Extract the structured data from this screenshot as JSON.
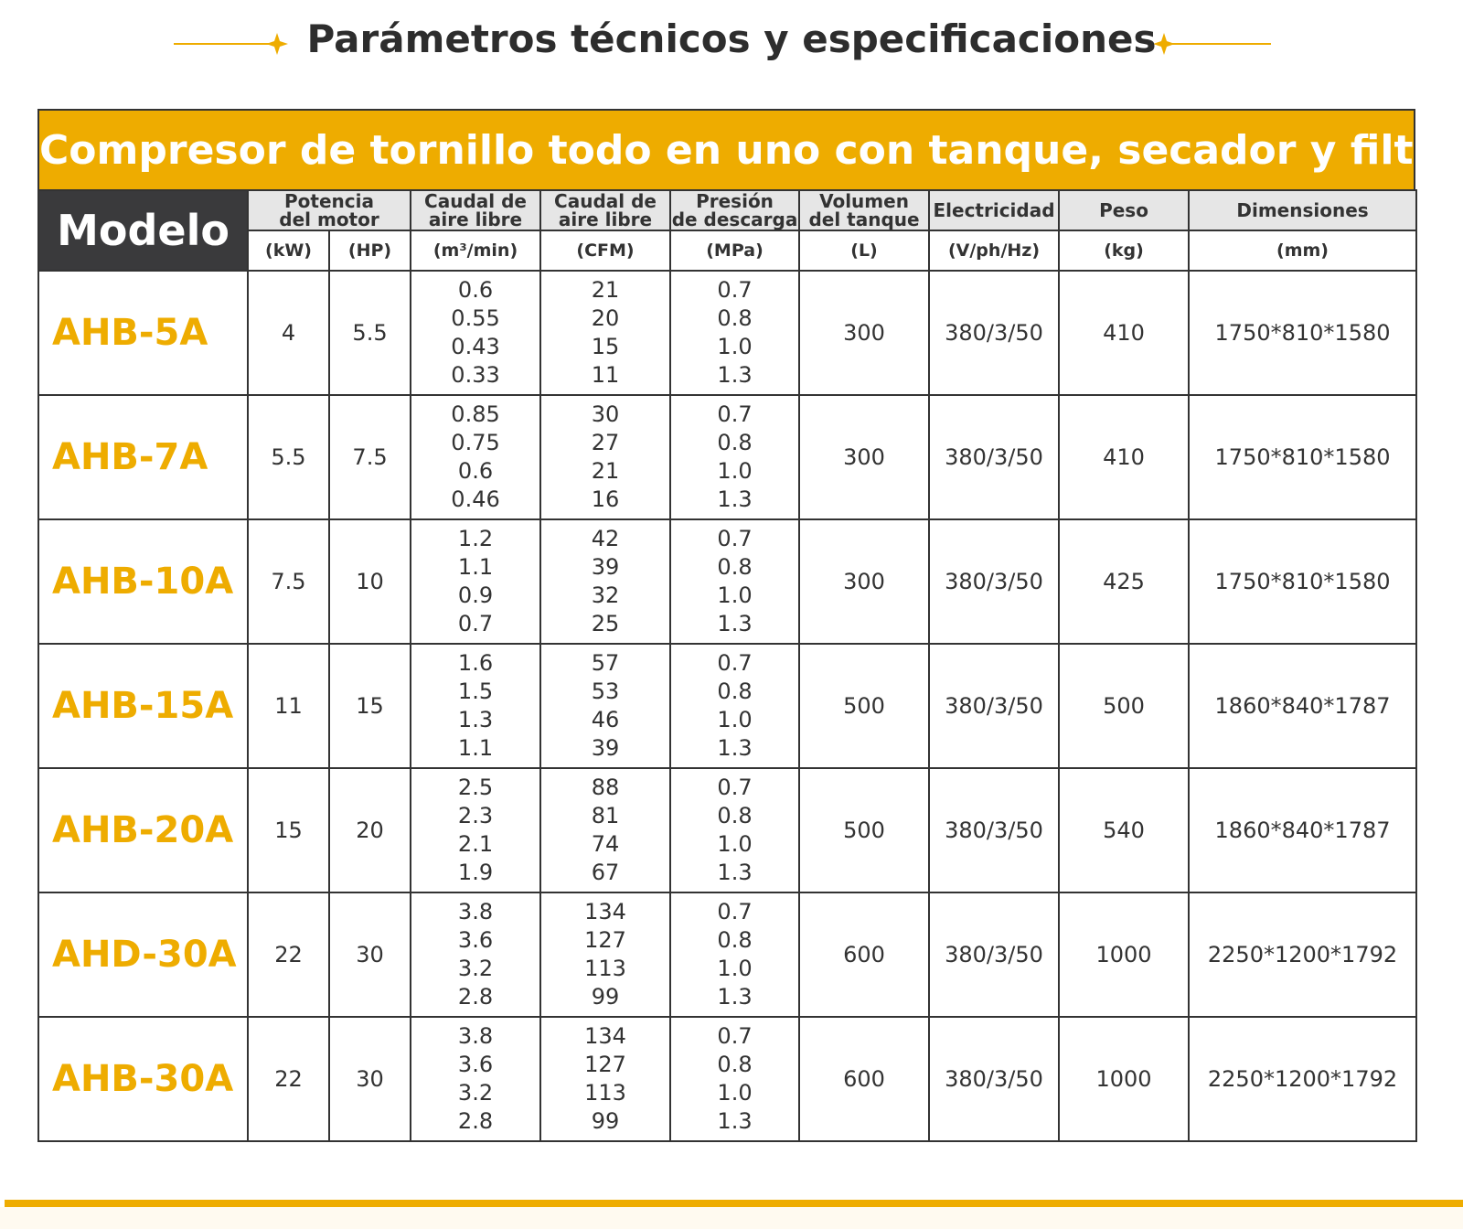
{
  "header": {
    "title": "Parámetros técnicos y especificaciones"
  },
  "table": {
    "title": "Compresor de tornillo todo en uno con tanque, secador y filtros",
    "model_header": "Modelo",
    "columns": [
      {
        "lines": [
          "Potencia",
          "del motor"
        ],
        "units": [
          "(kW)",
          "(HP)"
        ]
      },
      {
        "lines": [
          "Caudal de",
          "aire libre"
        ],
        "units": [
          "(m³/min)"
        ]
      },
      {
        "lines": [
          "Caudal de",
          "aire libre"
        ],
        "units": [
          "(CFM)"
        ]
      },
      {
        "lines": [
          "Presión",
          "de descarga"
        ],
        "units": [
          "(MPa)"
        ]
      },
      {
        "lines": [
          "Volumen",
          "del tanque"
        ],
        "units": [
          "(L)"
        ]
      },
      {
        "lines": [
          "Electricidad"
        ],
        "units": [
          "(V/ph/Hz)"
        ]
      },
      {
        "lines": [
          "Peso"
        ],
        "units": [
          "(kg)"
        ]
      },
      {
        "lines": [
          "Dimensiones"
        ],
        "units": [
          "(mm)"
        ]
      }
    ],
    "rows": [
      {
        "model": "AHB-5A",
        "kw": "4",
        "hp": "5.5",
        "flow_m3": [
          "0.6",
          "0.55",
          "0.43",
          "0.33"
        ],
        "flow_cfm": [
          "21",
          "20",
          "15",
          "11"
        ],
        "pressure": [
          "0.7",
          "0.8",
          "1.0",
          "1.3"
        ],
        "tank": "300",
        "electricity": "380/3/50",
        "weight": "410",
        "dimensions": "1750*810*1580"
      },
      {
        "model": "AHB-7A",
        "kw": "5.5",
        "hp": "7.5",
        "flow_m3": [
          "0.85",
          "0.75",
          "0.6",
          "0.46"
        ],
        "flow_cfm": [
          "30",
          "27",
          "21",
          "16"
        ],
        "pressure": [
          "0.7",
          "0.8",
          "1.0",
          "1.3"
        ],
        "tank": "300",
        "electricity": "380/3/50",
        "weight": "410",
        "dimensions": "1750*810*1580"
      },
      {
        "model": "AHB-10A",
        "kw": "7.5",
        "hp": "10",
        "flow_m3": [
          "1.2",
          "1.1",
          "0.9",
          "0.7"
        ],
        "flow_cfm": [
          "42",
          "39",
          "32",
          "25"
        ],
        "pressure": [
          "0.7",
          "0.8",
          "1.0",
          "1.3"
        ],
        "tank": "300",
        "electricity": "380/3/50",
        "weight": "425",
        "dimensions": "1750*810*1580"
      },
      {
        "model": "AHB-15A",
        "kw": "11",
        "hp": "15",
        "flow_m3": [
          "1.6",
          "1.5",
          "1.3",
          "1.1"
        ],
        "flow_cfm": [
          "57",
          "53",
          "46",
          "39"
        ],
        "pressure": [
          "0.7",
          "0.8",
          "1.0",
          "1.3"
        ],
        "tank": "500",
        "electricity": "380/3/50",
        "weight": "500",
        "dimensions": "1860*840*1787"
      },
      {
        "model": "AHB-20A",
        "kw": "15",
        "hp": "20",
        "flow_m3": [
          "2.5",
          "2.3",
          "2.1",
          "1.9"
        ],
        "flow_cfm": [
          "88",
          "81",
          "74",
          "67"
        ],
        "pressure": [
          "0.7",
          "0.8",
          "1.0",
          "1.3"
        ],
        "tank": "500",
        "electricity": "380/3/50",
        "weight": "540",
        "dimensions": "1860*840*1787"
      },
      {
        "model": "AHD-30A",
        "kw": "22",
        "hp": "30",
        "flow_m3": [
          "3.8",
          "3.6",
          "3.2",
          "2.8"
        ],
        "flow_cfm": [
          "134",
          "127",
          "113",
          "99"
        ],
        "pressure": [
          "0.7",
          "0.8",
          "1.0",
          "1.3"
        ],
        "tank": "600",
        "electricity": "380/3/50",
        "weight": "1000",
        "dimensions": "2250*1200*1792"
      },
      {
        "model": "AHB-30A",
        "kw": "22",
        "hp": "30",
        "flow_m3": [
          "3.8",
          "3.6",
          "3.2",
          "2.8"
        ],
        "flow_cfm": [
          "134",
          "127",
          "113",
          "99"
        ],
        "pressure": [
          "0.7",
          "0.8",
          "1.0",
          "1.3"
        ],
        "tank": "600",
        "electricity": "380/3/50",
        "weight": "1000",
        "dimensions": "2250*1200*1792"
      }
    ]
  }
}
